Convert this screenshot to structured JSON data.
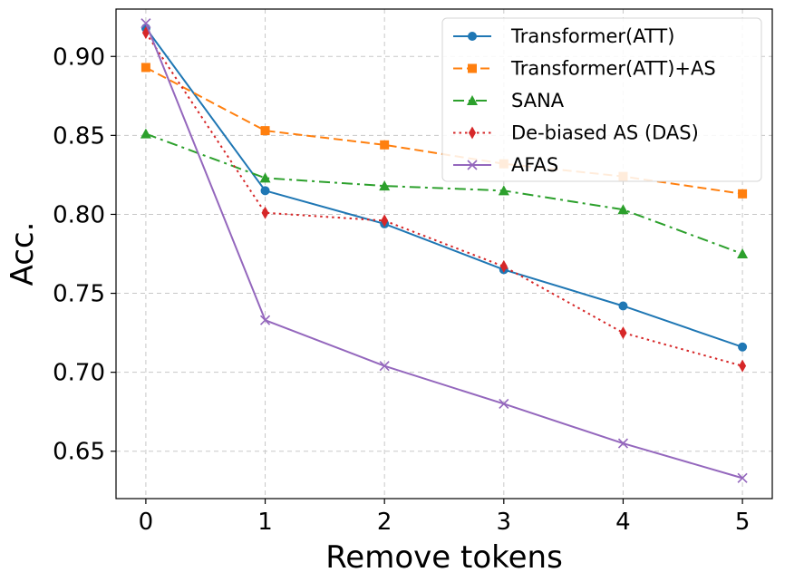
{
  "chart_data": {
    "type": "line",
    "xlabel": "Remove tokens",
    "ylabel": "Acc.",
    "x": [
      0,
      1,
      2,
      3,
      4,
      5
    ],
    "xticks": [
      "0",
      "1",
      "2",
      "3",
      "4",
      "5"
    ],
    "yticks": [
      "0.65",
      "0.70",
      "0.75",
      "0.80",
      "0.85",
      "0.90"
    ],
    "xlim": [
      -0.25,
      5.25
    ],
    "ylim": [
      0.62,
      0.93
    ],
    "grid": true,
    "legend_position": "top-right",
    "series": [
      {
        "name": "Transformer(ATT)",
        "values": [
          0.918,
          0.815,
          0.794,
          0.765,
          0.742,
          0.716
        ],
        "color": "#1f77b4",
        "dash": "solid",
        "marker": "circle"
      },
      {
        "name": "Transformer(ATT)+AS",
        "values": [
          0.893,
          0.853,
          0.844,
          0.832,
          0.824,
          0.813
        ],
        "color": "#ff7f0e",
        "dash": "dashed",
        "marker": "square"
      },
      {
        "name": "SANA",
        "values": [
          0.851,
          0.823,
          0.818,
          0.815,
          0.803,
          0.775
        ],
        "color": "#2ca02c",
        "dash": "dashdot",
        "marker": "triangle"
      },
      {
        "name": "De-biased AS (DAS)",
        "values": [
          0.915,
          0.801,
          0.796,
          0.767,
          0.725,
          0.704
        ],
        "color": "#d62728",
        "dash": "dotted",
        "marker": "diamond"
      },
      {
        "name": "AFAS",
        "values": [
          0.921,
          0.733,
          0.704,
          0.68,
          0.655,
          0.633
        ],
        "color": "#9467bd",
        "dash": "solid",
        "marker": "x"
      }
    ]
  }
}
